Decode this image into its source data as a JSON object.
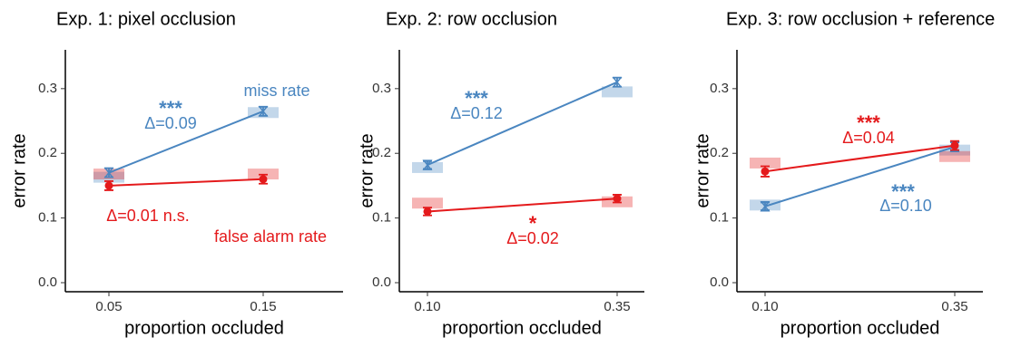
{
  "chart_data": [
    {
      "type": "line",
      "title": "Exp. 1: pixel occlusion",
      "xlabel": "proportion occluded",
      "ylabel": "error rate",
      "categories": [
        "0.05",
        "0.15"
      ],
      "ylim": [
        -0.014,
        0.36
      ],
      "yticks": [
        {
          "value": 0,
          "label": "0.0"
        },
        0.1,
        0.2,
        0.3
      ],
      "series": [
        {
          "name": "miss rate",
          "color": "#4a86c0",
          "marker": "hourglass",
          "values": [
            0.17,
            0.265
          ],
          "errors": [
            0.007,
            0.007
          ],
          "bands": [
            0.163,
            0.263
          ]
        },
        {
          "name": "false alarm rate",
          "color": "#e41a1c",
          "marker": "circle",
          "values": [
            0.15,
            0.16
          ],
          "errors": [
            0.007,
            0.007
          ],
          "bands": [
            0.168,
            0.168
          ]
        }
      ],
      "annotations": [
        {
          "text": "***",
          "color": "#4a86c0"
        },
        {
          "text": "Δ=0.09",
          "color": "#4a86c0"
        },
        {
          "text": "Δ=0.01 n.s.",
          "color": "#e41a1c"
        }
      ]
    },
    {
      "type": "line",
      "title": "Exp. 2: row occlusion",
      "xlabel": "proportion occluded",
      "ylabel": "error rate",
      "categories": [
        "0.10",
        "0.35"
      ],
      "ylim": [
        -0.014,
        0.36
      ],
      "yticks": [
        {
          "value": 0,
          "label": "0.0"
        },
        0.1,
        0.2,
        0.3
      ],
      "series": [
        {
          "color": "#4a86c0",
          "marker": "hourglass",
          "values": [
            0.182,
            0.31
          ],
          "errors": [
            0.006,
            0.007
          ],
          "bands": [
            0.178,
            0.295
          ]
        },
        {
          "color": "#e41a1c",
          "marker": "circle",
          "values": [
            0.11,
            0.13
          ],
          "errors": [
            0.006,
            0.006
          ],
          "bands": [
            0.123,
            0.125
          ]
        }
      ],
      "annotations": [
        {
          "text": "***",
          "color": "#4a86c0"
        },
        {
          "text": "Δ=0.12",
          "color": "#4a86c0"
        },
        {
          "text": "*",
          "color": "#e41a1c"
        },
        {
          "text": "Δ=0.02",
          "color": "#e41a1c"
        }
      ]
    },
    {
      "type": "line",
      "title": "Exp. 3: row occlusion + reference",
      "xlabel": "proportion occluded",
      "ylabel": "error rate",
      "categories": [
        "0.10",
        "0.35"
      ],
      "ylim": [
        -0.014,
        0.36
      ],
      "yticks": [
        {
          "value": 0,
          "label": "0.0"
        },
        0.1,
        0.2,
        0.3
      ],
      "series": [
        {
          "color": "#4a86c0",
          "marker": "hourglass",
          "values": [
            0.118,
            0.21
          ],
          "errors": [
            0.006,
            0.007
          ],
          "bands": [
            0.12,
            0.205
          ]
        },
        {
          "color": "#e41a1c",
          "marker": "circle",
          "values": [
            0.172,
            0.212
          ],
          "errors": [
            0.008,
            0.007
          ],
          "bands": [
            0.185,
            0.195
          ]
        }
      ],
      "annotations": [
        {
          "text": "***",
          "color": "#e41a1c"
        },
        {
          "text": "Δ=0.04",
          "color": "#e41a1c"
        },
        {
          "text": "***",
          "color": "#4a86c0"
        },
        {
          "text": "Δ=0.10",
          "color": "#4a86c0"
        }
      ]
    }
  ]
}
